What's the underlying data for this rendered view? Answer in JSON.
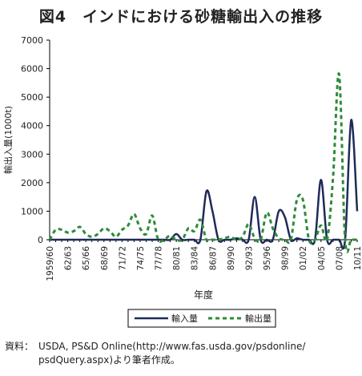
{
  "title": "図4　インドにおける砂糖輸出入の推移",
  "source": {
    "label": "資料：",
    "line1": "USDA, PS&D Online(http://www.fas.usda.gov/psdonline/",
    "line2": "psdQuery.aspx)より筆者作成。"
  },
  "colors": {
    "imports": "#1f2a5a",
    "exports": "#2e8b3a",
    "axis": "#000000"
  },
  "chart_data": {
    "type": "line",
    "xlabel": "年度",
    "ylabel": "輸出入量(1000t)",
    "ylim": [
      0,
      7000
    ],
    "yticks": [
      0,
      1000,
      2000,
      3000,
      4000,
      5000,
      6000,
      7000
    ],
    "grid": false,
    "legend": "bottom",
    "categories": [
      "1959/60",
      "60/61",
      "61/62",
      "62/63",
      "63/64",
      "64/65",
      "65/66",
      "66/67",
      "67/68",
      "68/69",
      "69/70",
      "70/71",
      "71/72",
      "72/73",
      "73/74",
      "74/75",
      "75/76",
      "76/77",
      "77/78",
      "78/79",
      "79/80",
      "80/81",
      "81/82",
      "82/83",
      "83/84",
      "84/85",
      "85/86",
      "86/87",
      "87/88",
      "88/89",
      "89/90",
      "90/91",
      "91/92",
      "92/93",
      "93/94",
      "94/95",
      "95/96",
      "96/97",
      "97/98",
      "98/99",
      "99/00",
      "00/01",
      "01/02",
      "02/03",
      "03/04",
      "04/05",
      "05/06",
      "06/07",
      "07/08",
      "08/09",
      "09/10",
      "10/11"
    ],
    "xtick_labels": [
      "1959/60",
      "62/63",
      "65/66",
      "68/69",
      "71/72",
      "74/75",
      "77/78",
      "80/81",
      "83/84",
      "86/87",
      "89/90",
      "92/93",
      "95/96",
      "98/99",
      "01/02",
      "04/05",
      "07/08",
      "10/11"
    ],
    "series": [
      {
        "name": "輸入量",
        "style": "solid",
        "values": [
          0,
          0,
          0,
          0,
          0,
          0,
          0,
          0,
          0,
          0,
          0,
          0,
          0,
          0,
          0,
          0,
          0,
          0,
          0,
          0,
          0,
          200,
          0,
          0,
          0,
          0,
          1700,
          1000,
          0,
          0,
          0,
          50,
          0,
          0,
          1500,
          0,
          0,
          0,
          1000,
          800,
          0,
          50,
          0,
          0,
          0,
          2100,
          0,
          0,
          0,
          0,
          4200,
          1000
        ]
      },
      {
        "name": "輸出量",
        "style": "dashed",
        "values": [
          0,
          350,
          350,
          250,
          300,
          450,
          200,
          100,
          200,
          400,
          300,
          100,
          350,
          500,
          900,
          400,
          200,
          850,
          0,
          0,
          150,
          0,
          0,
          400,
          300,
          700,
          0,
          0,
          0,
          50,
          100,
          0,
          100,
          550,
          50,
          0,
          950,
          400,
          50,
          0,
          0,
          1400,
          1400,
          0,
          0,
          500,
          0,
          2200,
          5800,
          0,
          0,
          0
        ]
      }
    ]
  }
}
